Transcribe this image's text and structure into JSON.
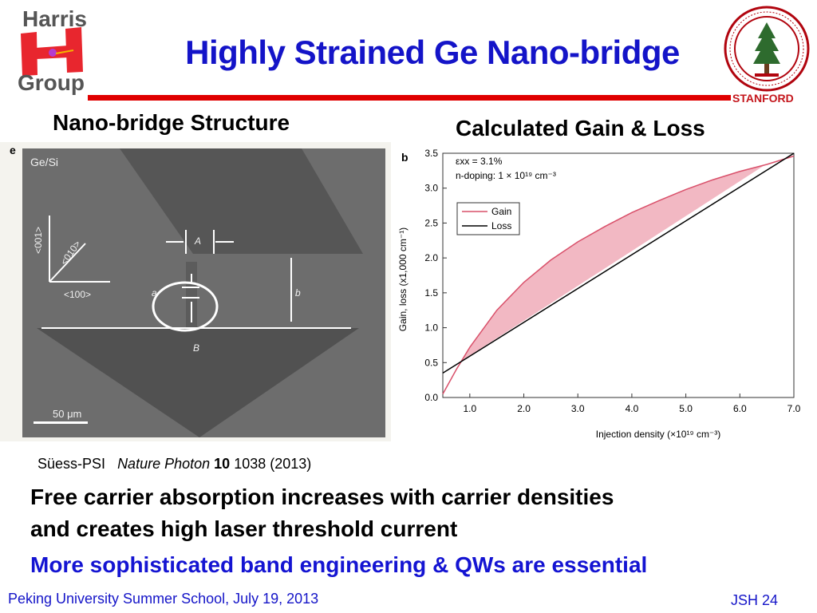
{
  "logo": {
    "line1": "Harris",
    "line2": "Group"
  },
  "title": "Highly Strained Ge Nano-bridge",
  "seal": {
    "label": "STANFORD"
  },
  "headings": {
    "left": "Nano-bridge Structure",
    "right": "Calculated Gain & Loss"
  },
  "sem_image": {
    "panel_letter": "e",
    "material": "Ge/Si",
    "axis_001": "<001>",
    "axis_010": "<010>",
    "axis_100": "<100>",
    "label_A": "A",
    "label_a": "a",
    "label_b": "b",
    "label_B": "B",
    "scale_bar": "50 μm"
  },
  "citation": {
    "author": "Süess-PSI",
    "journal": "Nature Photon",
    "volume": "10",
    "rest": "1038 (2013)"
  },
  "bullets": {
    "line1": "Free carrier absorption increases with carrier densities",
    "line2": "and creates high laser threshold current",
    "highlight": "More sophisticated band engineering & QWs are essential"
  },
  "footer": {
    "left": "Peking University Summer School, July 19, 2013",
    "right": "JSH 24"
  },
  "colors": {
    "title_blue": "#1414c8",
    "rule_red": "#e00000",
    "gain_red": "#d9506a",
    "fill_pink": "#f2b8c3"
  },
  "chart_data": {
    "type": "line",
    "panel_letter": "b",
    "title": "",
    "xlabel": "Injection density (×10¹⁹ cm⁻³)",
    "ylabel": "Gain, loss (x1,000 cm⁻¹)",
    "xlim": [
      0.5,
      7.0
    ],
    "ylim": [
      0.0,
      3.5
    ],
    "xticks": [
      1.0,
      2.0,
      3.0,
      4.0,
      5.0,
      6.0,
      7.0
    ],
    "xtick_labels": [
      "1.0",
      "2.0",
      "3.0",
      "4.0",
      "5.0",
      "6.0",
      "7.0"
    ],
    "yticks": [
      0.0,
      0.5,
      1.0,
      1.5,
      2.0,
      2.5,
      3.0,
      3.5
    ],
    "ytick_labels": [
      "0.0",
      "0.5",
      "1.0",
      "1.5",
      "2.0",
      "2.5",
      "3.0",
      "3.5"
    ],
    "annotations": [
      "εxx = 3.1%",
      "n-doping: 1 × 10¹⁹ cm⁻³"
    ],
    "legend": "top-left",
    "grid": false,
    "series": [
      {
        "name": "Gain",
        "color": "#d9506a",
        "x": [
          0.5,
          0.75,
          1.0,
          1.5,
          2.0,
          2.5,
          3.0,
          3.5,
          4.0,
          4.5,
          5.0,
          5.5,
          6.0,
          6.5,
          7.0
        ],
        "y": [
          0.05,
          0.4,
          0.72,
          1.25,
          1.65,
          1.97,
          2.23,
          2.45,
          2.65,
          2.82,
          2.98,
          3.12,
          3.24,
          3.34,
          3.46
        ]
      },
      {
        "name": "Loss",
        "color": "#000000",
        "x": [
          0.5,
          7.0
        ],
        "y": [
          0.35,
          3.6
        ]
      }
    ]
  }
}
